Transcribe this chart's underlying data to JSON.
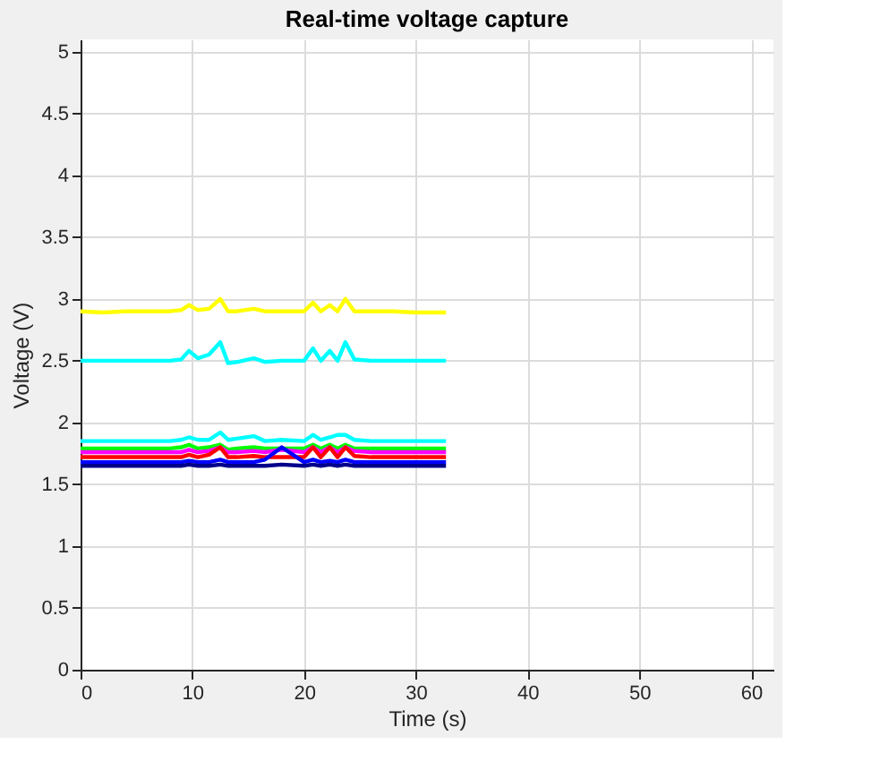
{
  "chart_data": {
    "type": "line",
    "title": "Real-time voltage capture",
    "xlabel": "Time (s)",
    "ylabel": "Voltage (V)",
    "x": [
      0,
      2,
      4,
      6,
      8,
      9,
      9.7,
      10.5,
      11.5,
      12.5,
      13.2,
      14,
      15.5,
      16.5,
      18,
      20,
      20.8,
      21.5,
      22.3,
      23,
      23.7,
      24.5,
      26,
      28,
      30,
      32.7
    ],
    "series": [
      {
        "color": "#ffff00",
        "values": [
          2.9,
          2.89,
          2.9,
          2.9,
          2.9,
          2.91,
          2.95,
          2.91,
          2.92,
          3.0,
          2.9,
          2.9,
          2.92,
          2.9,
          2.9,
          2.9,
          2.97,
          2.9,
          2.95,
          2.9,
          3.0,
          2.9,
          2.9,
          2.9,
          2.89,
          2.89
        ]
      },
      {
        "color": "#00ffff",
        "values": [
          2.5,
          2.5,
          2.5,
          2.5,
          2.5,
          2.51,
          2.58,
          2.52,
          2.55,
          2.65,
          2.48,
          2.49,
          2.52,
          2.49,
          2.5,
          2.5,
          2.6,
          2.5,
          2.58,
          2.5,
          2.65,
          2.51,
          2.5,
          2.5,
          2.5,
          2.5
        ]
      },
      {
        "color": "#00ffff",
        "values": [
          1.85,
          1.85,
          1.85,
          1.85,
          1.85,
          1.86,
          1.88,
          1.86,
          1.86,
          1.92,
          1.86,
          1.87,
          1.89,
          1.85,
          1.86,
          1.85,
          1.9,
          1.86,
          1.88,
          1.9,
          1.9,
          1.86,
          1.85,
          1.85,
          1.85,
          1.85
        ]
      },
      {
        "color": "#00ff00",
        "values": [
          1.79,
          1.79,
          1.79,
          1.79,
          1.79,
          1.8,
          1.82,
          1.79,
          1.8,
          1.82,
          1.78,
          1.79,
          1.8,
          1.79,
          1.79,
          1.79,
          1.82,
          1.79,
          1.82,
          1.79,
          1.82,
          1.79,
          1.79,
          1.79,
          1.79,
          1.79
        ]
      },
      {
        "color": "#ff00ff",
        "values": [
          1.76,
          1.76,
          1.76,
          1.76,
          1.76,
          1.76,
          1.78,
          1.76,
          1.77,
          1.8,
          1.76,
          1.76,
          1.77,
          1.76,
          1.78,
          1.76,
          1.8,
          1.76,
          1.8,
          1.76,
          1.8,
          1.77,
          1.76,
          1.76,
          1.76,
          1.76
        ]
      },
      {
        "color": "#ff0000",
        "values": [
          1.72,
          1.72,
          1.72,
          1.72,
          1.72,
          1.72,
          1.74,
          1.72,
          1.74,
          1.8,
          1.72,
          1.72,
          1.73,
          1.72,
          1.72,
          1.72,
          1.8,
          1.72,
          1.8,
          1.72,
          1.8,
          1.73,
          1.72,
          1.72,
          1.72,
          1.72
        ]
      },
      {
        "color": "#0000ff",
        "values": [
          1.68,
          1.68,
          1.68,
          1.68,
          1.68,
          1.68,
          1.69,
          1.68,
          1.68,
          1.7,
          1.68,
          1.68,
          1.68,
          1.7,
          1.8,
          1.68,
          1.7,
          1.68,
          1.69,
          1.68,
          1.7,
          1.68,
          1.68,
          1.68,
          1.68,
          1.68
        ]
      },
      {
        "color": "#00008b",
        "values": [
          1.65,
          1.65,
          1.65,
          1.65,
          1.65,
          1.65,
          1.66,
          1.65,
          1.65,
          1.66,
          1.65,
          1.65,
          1.65,
          1.65,
          1.66,
          1.65,
          1.66,
          1.65,
          1.66,
          1.65,
          1.66,
          1.65,
          1.65,
          1.65,
          1.65,
          1.65
        ]
      }
    ],
    "xlim": [
      0,
      62
    ],
    "ylim": [
      0,
      5.1
    ],
    "xticks": [
      0,
      10,
      20,
      30,
      40,
      50,
      60
    ],
    "yticks": [
      0,
      0.5,
      1,
      1.5,
      2,
      2.5,
      3,
      3.5,
      4,
      4.5,
      5
    ],
    "grid": true,
    "legend": false
  }
}
